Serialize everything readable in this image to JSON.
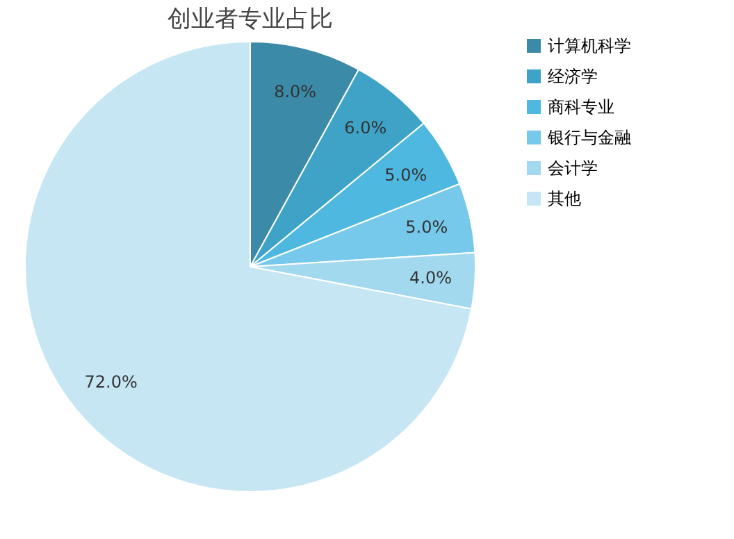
{
  "chart_data": {
    "type": "pie",
    "title": "创业者专业占比",
    "categories": [
      "计算机科学",
      "经济学",
      "商科专业",
      "银行与金融",
      "会计学",
      "其他"
    ],
    "values": [
      8,
      6,
      5,
      5,
      4,
      72
    ],
    "value_labels": [
      "8.0%",
      "6.0%",
      "5.0%",
      "5.0%",
      "4.0%",
      "72.0%"
    ],
    "colors": [
      "#3a8aa8",
      "#3fa3c7",
      "#4fb8e0",
      "#76c9ea",
      "#a3d9ef",
      "#c6e6f4"
    ],
    "legend": "right"
  }
}
